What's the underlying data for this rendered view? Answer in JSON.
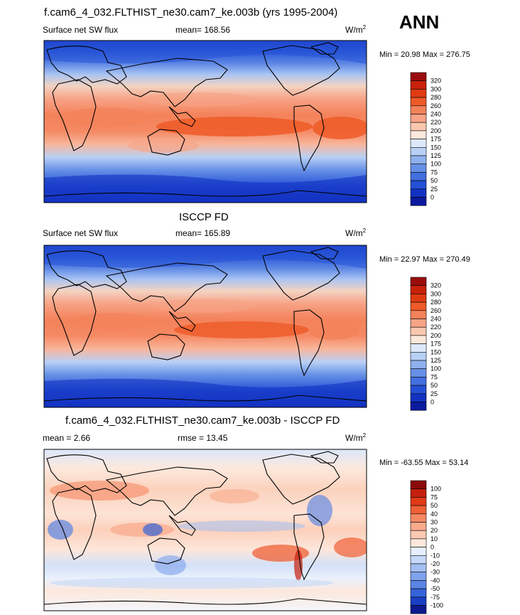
{
  "header": {
    "season": "ANN"
  },
  "chart_data": [
    {
      "type": "heatmap",
      "title": "f.cam6_4_032.FLTHIST_ne30.cam7_ke.003b (yrs 1995-2004)",
      "left_label": "Surface net SW flux",
      "center_label": "mean= 168.56",
      "units_base": "W/m",
      "units_exp": "2",
      "minmax": "Min =  20.98 Max = 276.75",
      "colorbar": {
        "levels": [
          "320",
          "300",
          "280",
          "260",
          "240",
          "220",
          "200",
          "175",
          "150",
          "125",
          "100",
          "75",
          "50",
          "25",
          "0"
        ],
        "colors": [
          "#9a0d0d",
          "#c8210c",
          "#df3a12",
          "#ee5a28",
          "#f4825a",
          "#f7a386",
          "#fac7ae",
          "#fde8dc",
          "#dde9fb",
          "#b8d0f5",
          "#8fb1ee",
          "#6690e6",
          "#4370e0",
          "#2450d6",
          "#1232c2",
          "#0c1a9e"
        ]
      }
    },
    {
      "type": "heatmap",
      "title": "ISCCP FD",
      "left_label": "Surface net SW flux",
      "center_label": "mean= 165.89",
      "units_base": "W/m",
      "units_exp": "2",
      "minmax": "Min =  22.97 Max = 270.49",
      "colorbar": {
        "levels": [
          "320",
          "300",
          "280",
          "260",
          "240",
          "220",
          "200",
          "175",
          "150",
          "125",
          "100",
          "75",
          "50",
          "25",
          "0"
        ],
        "colors": [
          "#9a0d0d",
          "#c8210c",
          "#df3a12",
          "#ee5a28",
          "#f4825a",
          "#f7a386",
          "#fac7ae",
          "#fde8dc",
          "#dde9fb",
          "#b8d0f5",
          "#8fb1ee",
          "#6690e6",
          "#4370e0",
          "#2450d6",
          "#1232c2",
          "#0c1a9e"
        ]
      }
    },
    {
      "type": "heatmap",
      "title": "f.cam6_4_032.FLTHIST_ne30.cam7_ke.003b - ISCCP FD",
      "left_label": "mean =   2.66",
      "center_label": "rmse =  13.45",
      "units_base": "W/m",
      "units_exp": "2",
      "minmax": "Min = -63.55 Max =  53.14",
      "colorbar": {
        "levels": [
          "100",
          "75",
          "50",
          "40",
          "30",
          "20",
          "10",
          "0",
          "-10",
          "-20",
          "-30",
          "-40",
          "-50",
          "-75",
          "-100"
        ],
        "colors": [
          "#8a0a0a",
          "#c4200d",
          "#e03a16",
          "#ef6035",
          "#f58863",
          "#f9aa8b",
          "#fcc9b2",
          "#fde8dc",
          "#e6efff",
          "#c6d8f7",
          "#a3bff2",
          "#7ea2ec",
          "#5a84e4",
          "#3563d9",
          "#1a3fc4",
          "#0c1a8f"
        ]
      }
    }
  ]
}
